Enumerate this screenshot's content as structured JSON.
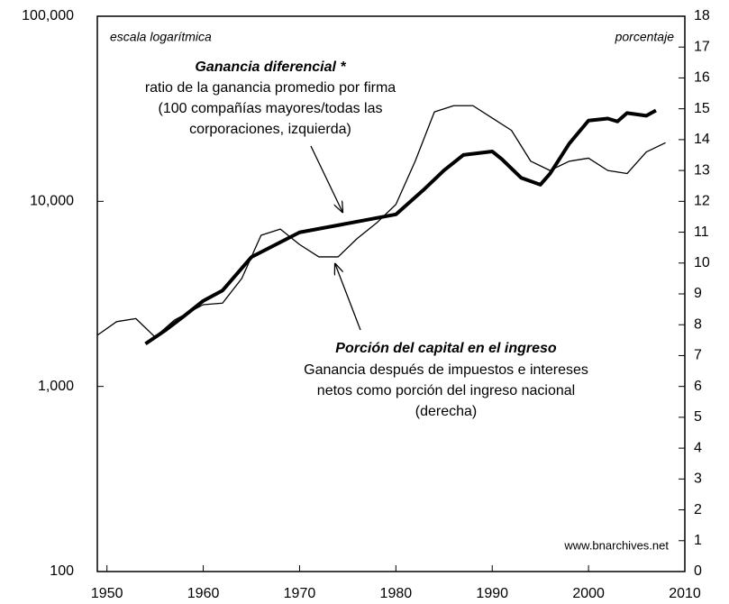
{
  "chart_data": {
    "type": "line",
    "notes": {
      "left": "escala logarítmica",
      "right": "porcentaje",
      "source": "www.bnarchives.net"
    },
    "annotations": [
      {
        "title": "Ganancia diferencial *",
        "lines": [
          "ratio de la ganancia promedio por firma",
          "(100 compañías mayores/todas las",
          "corporaciones, izquierda)"
        ]
      },
      {
        "title": "Porción del capital en el ingreso",
        "lines": [
          "Ganancia después de impuestos e intereses",
          "netos como porción del ingreso nacional",
          "(derecha)"
        ]
      }
    ],
    "series": [
      {
        "name": "Ganancia diferencial *",
        "color": "#000000",
        "axis": "y",
        "width": 4,
        "x": [
          1954,
          1956,
          1958,
          1960,
          1962,
          1965,
          1970,
          1975,
          1980,
          1983,
          1985,
          1987,
          1990,
          1991,
          1993,
          1995,
          1996,
          1998,
          2000,
          2002,
          2003,
          2004,
          2006,
          2007
        ],
        "values": [
          1700,
          2000,
          2400,
          2900,
          3300,
          5000,
          6800,
          7600,
          8500,
          11700,
          14700,
          17800,
          18600,
          16900,
          13400,
          12300,
          14100,
          20500,
          27300,
          28000,
          27000,
          30000,
          29000,
          31000
        ]
      },
      {
        "name": "Porción del capital en el ingreso",
        "color": "#000000",
        "axis": "y2",
        "width": 1.3,
        "x": [
          1949,
          1951,
          1953,
          1955,
          1957,
          1960,
          1962,
          1964,
          1966,
          1968,
          1970,
          1972,
          1974,
          1976,
          1978,
          1980,
          1982,
          1984,
          1986,
          1988,
          1990,
          1992,
          1994,
          1996,
          1998,
          2000,
          2002,
          2004,
          2006,
          2008
        ],
        "values": [
          7.66,
          8.1,
          8.2,
          7.6,
          8.15,
          8.65,
          8.7,
          9.5,
          10.9,
          11.1,
          10.6,
          10.2,
          10.2,
          10.8,
          11.3,
          11.9,
          13.3,
          14.9,
          15.1,
          15.1,
          14.7,
          14.3,
          13.3,
          13.0,
          13.3,
          13.4,
          13.0,
          12.9,
          13.6,
          13.9
        ]
      }
    ],
    "xlim": [
      1949,
      2010
    ],
    "xticks": [
      1950,
      1960,
      1970,
      1980,
      1990,
      2000,
      2010
    ],
    "ylim": [
      100,
      100000
    ],
    "log_y": true,
    "yticks": [
      {
        "value": 100,
        "label": "100"
      },
      {
        "value": 1000,
        "label": "1,000"
      },
      {
        "value": 10000,
        "label": "10,000"
      },
      {
        "value": 100000,
        "label": "100,000"
      }
    ],
    "y2lim": [
      0,
      18
    ],
    "y2ticks": [
      0,
      1,
      2,
      3,
      4,
      5,
      6,
      7,
      8,
      9,
      10,
      11,
      12,
      13,
      14,
      15,
      16,
      17,
      18
    ]
  }
}
